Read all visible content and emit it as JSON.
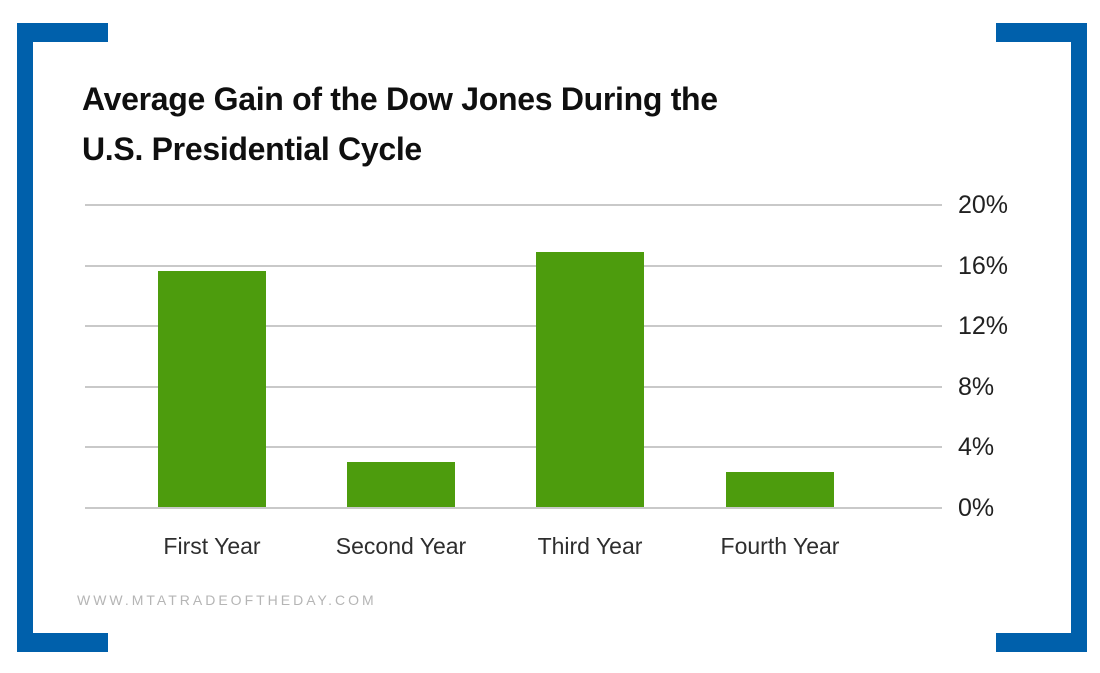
{
  "page": {
    "background_color": "#ffffff",
    "frame_color": "#0060ab"
  },
  "title": {
    "line1": "Average Gain of the Dow Jones During the",
    "line2": "U.S. Presidential Cycle"
  },
  "watermark": {
    "text": "WWW.MTATRADEOFTHEDAY.COM"
  },
  "chart_data": {
    "type": "bar",
    "title": "Average Gain of the Dow Jones During the U.S. Presidential Cycle",
    "categories": [
      "First Year",
      "Second Year",
      "Third Year",
      "Fourth Year"
    ],
    "values": [
      15.6,
      3.0,
      16.8,
      2.3
    ],
    "unit": "%",
    "xlabel": "",
    "ylabel": "",
    "ylim": [
      0,
      20
    ],
    "y_ticks": [
      "20%",
      "16%",
      "12%",
      "8%",
      "4%",
      "0%"
    ],
    "y_tick_side": "right",
    "grid": true,
    "legend": "none",
    "bar_color": "#4d9c0d",
    "gridline_color": "#c9c9c9"
  }
}
